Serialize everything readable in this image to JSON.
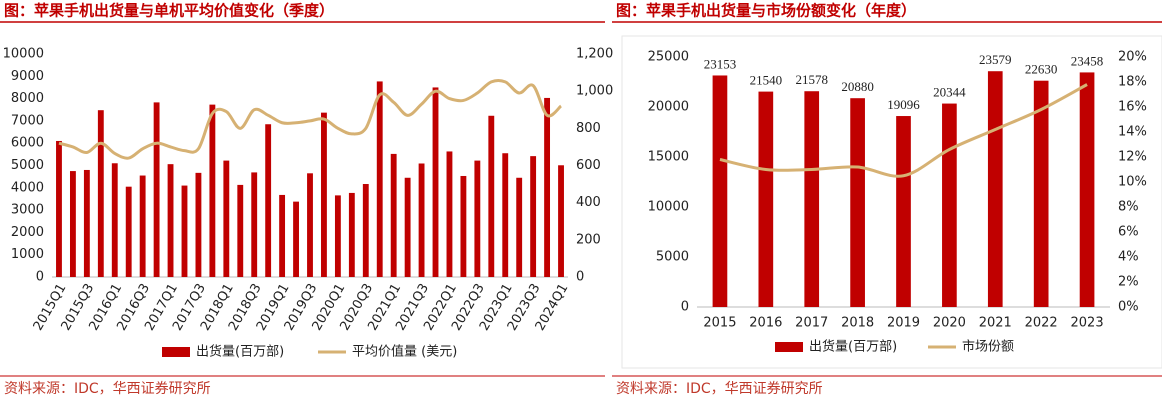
{
  "chart_data": [
    {
      "type": "bar",
      "title": "图：苹果手机出货量与单机平均价值变化（季度）",
      "source": "资料来源：IDC，华西证券研究所",
      "categories": [
        "2015Q1",
        null,
        "2015Q3",
        null,
        "2016Q1",
        null,
        "2016Q3",
        null,
        "2017Q1",
        null,
        "2017Q3",
        null,
        "2018Q1",
        null,
        "2018Q3",
        null,
        "2019Q1",
        null,
        "2019Q3",
        null,
        "2020Q1",
        null,
        "2020Q3",
        null,
        "2021Q1",
        null,
        "2021Q3",
        null,
        "2022Q1",
        null,
        "2022Q3",
        null,
        "2023Q1",
        null,
        "2023Q3",
        null,
        "2024Q1"
      ],
      "series": [
        {
          "name": "出货量(百万部)",
          "type": "bar",
          "color": "#c00000",
          "values": [
            6100,
            4750,
            4800,
            7480,
            5100,
            4050,
            4550,
            7830,
            5060,
            4100,
            4670,
            7730,
            5220,
            4130,
            4690,
            6850,
            3680,
            3380,
            4650,
            7370,
            3660,
            3770,
            4170,
            8770,
            5520,
            4450,
            5090,
            8500,
            5630,
            4530,
            5220,
            7230,
            5550,
            4450,
            5420,
            8030,
            5010
          ]
        },
        {
          "name": "平均价值量 (美元)",
          "type": "line",
          "axis": "y2",
          "color": "#d6b173",
          "values": [
            720,
            700,
            670,
            720,
            665,
            640,
            690,
            720,
            700,
            680,
            690,
            880,
            890,
            800,
            900,
            870,
            830,
            830,
            840,
            850,
            800,
            770,
            800,
            980,
            940,
            870,
            930,
            1000,
            960,
            950,
            990,
            1050,
            1050,
            990,
            1030,
            870,
            920
          ]
        }
      ],
      "ylim": [
        0,
        10000
      ],
      "yticks": [
        0,
        1000,
        2000,
        3000,
        4000,
        5000,
        6000,
        7000,
        8000,
        9000,
        10000
      ],
      "y2lim": [
        0,
        1200
      ],
      "y2ticks": [
        0,
        200,
        400,
        600,
        800,
        {
          "value": 1000,
          "label": "1,000"
        },
        {
          "value": 1200,
          "label": "1,200"
        }
      ],
      "legend": "bottom"
    },
    {
      "type": "bar",
      "title": "图：苹果手机出货量与市场份额变化（年度）",
      "source": "资料来源：IDC，华西证券研究所",
      "categories": [
        "2015",
        "2016",
        "2017",
        "2018",
        "2019",
        "2020",
        "2021",
        "2022",
        "2023"
      ],
      "series": [
        {
          "name": "出货量(百万部)",
          "type": "bar",
          "color": "#c00000",
          "values": [
            23153,
            21540,
            21578,
            20880,
            19096,
            20344,
            23579,
            22630,
            23458
          ]
        },
        {
          "name": "市场份额",
          "type": "line",
          "axis": "y2",
          "color": "#d6b173",
          "values": [
            11.8,
            11.0,
            11.0,
            11.2,
            10.5,
            12.6,
            14.2,
            15.8,
            17.8
          ]
        }
      ],
      "ylim": [
        0,
        25000
      ],
      "yticks": [
        0,
        5000,
        10000,
        15000,
        20000,
        25000
      ],
      "y2lim": [
        0,
        20
      ],
      "y2ticks": [
        {
          "value": 0,
          "label": "0%"
        },
        {
          "value": 2,
          "label": "2%"
        },
        {
          "value": 4,
          "label": "4%"
        },
        {
          "value": 6,
          "label": "6%"
        },
        {
          "value": 8,
          "label": "8%"
        },
        {
          "value": 10,
          "label": "10%"
        },
        {
          "value": 12,
          "label": "12%"
        },
        {
          "value": 14,
          "label": "14%"
        },
        {
          "value": 16,
          "label": "16%"
        },
        {
          "value": 18,
          "label": "18%"
        },
        {
          "value": 20,
          "label": "20%"
        }
      ],
      "bar_labels": true,
      "legend": "bottom"
    }
  ]
}
